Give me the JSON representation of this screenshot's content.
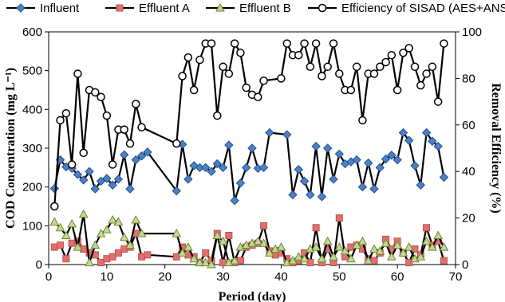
{
  "chart_data": {
    "type": "line",
    "xlabel": "Period (day)",
    "ylabel_left": "COD Concentration (mg L⁻¹)",
    "ylabel_right": "Removal Efficiency (%)",
    "xlim": [
      0,
      70
    ],
    "ylim_left": [
      0,
      600
    ],
    "ylim_right": [
      0,
      100
    ],
    "x_ticks": [
      "0",
      "10",
      "20",
      "30",
      "40",
      "50",
      "60",
      "70"
    ],
    "y_ticks_left": [
      "0",
      "100",
      "200",
      "300",
      "400",
      "500",
      "600"
    ],
    "y_ticks_right": [
      "0",
      "20",
      "40",
      "60",
      "80",
      "100"
    ],
    "grid": false,
    "legend_position": "top",
    "series": [
      {
        "name": "Influent",
        "axis": "left",
        "color": "#1f4e9c",
        "marker": "diamond",
        "marker_fill": "#4f81bd",
        "points": [
          [
            1,
            196
          ],
          [
            2,
            270
          ],
          [
            3,
            252
          ],
          [
            4,
            248
          ],
          [
            5,
            232
          ],
          [
            6,
            218
          ],
          [
            7,
            240
          ],
          [
            8,
            195
          ],
          [
            9,
            215
          ],
          [
            10,
            222
          ],
          [
            11,
            205
          ],
          [
            12,
            220
          ],
          [
            13,
            283
          ],
          [
            14,
            195
          ],
          [
            15,
            270
          ],
          [
            16,
            280
          ],
          [
            17,
            290
          ],
          [
            22,
            190
          ],
          [
            23,
            310
          ],
          [
            24,
            220
          ],
          [
            25,
            255
          ],
          [
            26,
            250
          ],
          [
            27,
            250
          ],
          [
            28,
            240
          ],
          [
            29,
            260
          ],
          [
            30,
            250
          ],
          [
            31,
            308
          ],
          [
            32,
            165
          ],
          [
            33,
            210
          ],
          [
            34,
            250
          ],
          [
            35,
            300
          ],
          [
            36,
            248
          ],
          [
            37,
            250
          ],
          [
            38,
            340
          ],
          [
            41,
            335
          ],
          [
            42,
            180
          ],
          [
            43,
            245
          ],
          [
            44,
            215
          ],
          [
            45,
            180
          ],
          [
            46,
            305
          ],
          [
            47,
            175
          ],
          [
            48,
            300
          ],
          [
            49,
            220
          ],
          [
            50,
            285
          ],
          [
            51,
            260
          ],
          [
            52,
            265
          ],
          [
            53,
            270
          ],
          [
            54,
            200
          ],
          [
            55,
            262
          ],
          [
            56,
            195
          ],
          [
            57,
            250
          ],
          [
            58,
            272
          ],
          [
            59,
            282
          ],
          [
            60,
            270
          ],
          [
            61,
            340
          ],
          [
            62,
            320
          ],
          [
            63,
            255
          ],
          [
            64,
            205
          ],
          [
            65,
            340
          ],
          [
            66,
            318
          ],
          [
            67,
            305
          ],
          [
            68,
            225
          ]
        ]
      },
      {
        "name": "Effluent A",
        "axis": "left",
        "color": "#c0504d",
        "marker": "square",
        "marker_fill": "#e07070",
        "points": [
          [
            1,
            45
          ],
          [
            2,
            50
          ],
          [
            3,
            15
          ],
          [
            4,
            55
          ],
          [
            5,
            60
          ],
          [
            6,
            40
          ],
          [
            7,
            30
          ],
          [
            8,
            25
          ],
          [
            9,
            5
          ],
          [
            10,
            15
          ],
          [
            11,
            20
          ],
          [
            12,
            30
          ],
          [
            13,
            40
          ],
          [
            14,
            45
          ],
          [
            15,
            80
          ],
          [
            16,
            20
          ],
          [
            17,
            25
          ],
          [
            22,
            20
          ],
          [
            23,
            45
          ],
          [
            24,
            25
          ],
          [
            25,
            20
          ],
          [
            26,
            5
          ],
          [
            27,
            30
          ],
          [
            28,
            10
          ],
          [
            29,
            80
          ],
          [
            30,
            5
          ],
          [
            31,
            75
          ],
          [
            32,
            5
          ],
          [
            33,
            10
          ],
          [
            34,
            45
          ],
          [
            35,
            50
          ],
          [
            36,
            55
          ],
          [
            37,
            100
          ],
          [
            38,
            35
          ],
          [
            39,
            25
          ],
          [
            40,
            30
          ],
          [
            41,
            15
          ],
          [
            42,
            5
          ],
          [
            43,
            10
          ],
          [
            44,
            30
          ],
          [
            45,
            5
          ],
          [
            46,
            95
          ],
          [
            47,
            5
          ],
          [
            48,
            40
          ],
          [
            49,
            5
          ],
          [
            50,
            120
          ],
          [
            51,
            20
          ],
          [
            52,
            45
          ],
          [
            53,
            50
          ],
          [
            54,
            40
          ],
          [
            55,
            15
          ],
          [
            56,
            10
          ],
          [
            57,
            30
          ],
          [
            58,
            65
          ],
          [
            59,
            40
          ],
          [
            60,
            60
          ],
          [
            61,
            30
          ],
          [
            62,
            5
          ],
          [
            63,
            40
          ],
          [
            64,
            25
          ],
          [
            65,
            95
          ],
          [
            66,
            50
          ],
          [
            67,
            60
          ],
          [
            68,
            10
          ]
        ]
      },
      {
        "name": "Effluent B",
        "axis": "left",
        "color": "#6a8a2a",
        "marker": "triangle",
        "marker_fill": "#c4d79b",
        "points": [
          [
            1,
            110
          ],
          [
            2,
            95
          ],
          [
            3,
            75
          ],
          [
            4,
            105
          ],
          [
            5,
            45
          ],
          [
            6,
            130
          ],
          [
            7,
            5
          ],
          [
            8,
            50
          ],
          [
            9,
            80
          ],
          [
            10,
            90
          ],
          [
            11,
            115
          ],
          [
            12,
            110
          ],
          [
            13,
            70
          ],
          [
            14,
            50
          ],
          [
            15,
            115
          ],
          [
            16,
            80
          ],
          [
            22,
            80
          ],
          [
            23,
            30
          ],
          [
            24,
            45
          ],
          [
            25,
            15
          ],
          [
            26,
            5
          ],
          [
            27,
            5
          ],
          [
            28,
            0
          ],
          [
            29,
            75
          ],
          [
            30,
            60
          ],
          [
            31,
            5
          ],
          [
            32,
            10
          ],
          [
            33,
            45
          ],
          [
            34,
            50
          ],
          [
            35,
            55
          ],
          [
            36,
            60
          ],
          [
            37,
            55
          ],
          [
            38,
            30
          ],
          [
            39,
            40
          ],
          [
            40,
            45
          ],
          [
            41,
            5
          ],
          [
            42,
            10
          ],
          [
            43,
            20
          ],
          [
            44,
            15
          ],
          [
            45,
            40
          ],
          [
            46,
            45
          ],
          [
            47,
            15
          ],
          [
            48,
            60
          ],
          [
            49,
            20
          ],
          [
            50,
            45
          ],
          [
            51,
            35
          ],
          [
            52,
            15
          ],
          [
            53,
            50
          ],
          [
            54,
            60
          ],
          [
            55,
            10
          ],
          [
            56,
            40
          ],
          [
            57,
            35
          ],
          [
            58,
            55
          ],
          [
            59,
            20
          ],
          [
            60,
            50
          ],
          [
            61,
            30
          ],
          [
            62,
            45
          ],
          [
            63,
            15
          ],
          [
            64,
            20
          ],
          [
            65,
            60
          ],
          [
            66,
            45
          ],
          [
            67,
            75
          ],
          [
            68,
            45
          ]
        ]
      },
      {
        "name": "Efficiency of SISAD (AES+ANS)",
        "axis": "right",
        "color": "#000000",
        "marker": "circle",
        "marker_fill": "#ffffff",
        "points": [
          [
            1,
            25
          ],
          [
            2,
            62
          ],
          [
            3,
            65
          ],
          [
            4,
            43
          ],
          [
            5,
            82
          ],
          [
            6,
            48
          ],
          [
            7,
            75
          ],
          [
            8,
            74
          ],
          [
            9,
            72
          ],
          [
            10,
            64
          ],
          [
            11,
            43
          ],
          [
            12,
            58
          ],
          [
            13,
            58
          ],
          [
            14,
            52
          ],
          [
            15,
            69
          ],
          [
            16,
            59
          ],
          [
            22,
            52
          ],
          [
            23,
            81
          ],
          [
            24,
            89
          ],
          [
            25,
            75
          ],
          [
            26,
            88
          ],
          [
            27,
            95
          ],
          [
            28,
            95
          ],
          [
            29,
            64
          ],
          [
            30,
            85
          ],
          [
            31,
            82
          ],
          [
            32,
            95
          ],
          [
            33,
            91
          ],
          [
            34,
            76
          ],
          [
            35,
            73
          ],
          [
            36,
            72
          ],
          [
            37,
            79
          ],
          [
            40,
            80
          ],
          [
            41,
            95
          ],
          [
            42,
            90
          ],
          [
            43,
            90
          ],
          [
            44,
            95
          ],
          [
            45,
            85
          ],
          [
            46,
            95
          ],
          [
            47,
            81
          ],
          [
            48,
            85
          ],
          [
            49,
            95
          ],
          [
            50,
            82
          ],
          [
            51,
            75
          ],
          [
            52,
            75
          ],
          [
            53,
            85
          ],
          [
            54,
            62
          ],
          [
            55,
            82
          ],
          [
            56,
            82
          ],
          [
            57,
            85
          ],
          [
            58,
            87
          ],
          [
            59,
            90
          ],
          [
            60,
            75
          ],
          [
            61,
            91
          ],
          [
            62,
            93
          ],
          [
            63,
            85
          ],
          [
            64,
            77
          ],
          [
            65,
            82
          ],
          [
            66,
            85
          ],
          [
            67,
            70
          ],
          [
            68,
            95
          ]
        ]
      }
    ]
  }
}
